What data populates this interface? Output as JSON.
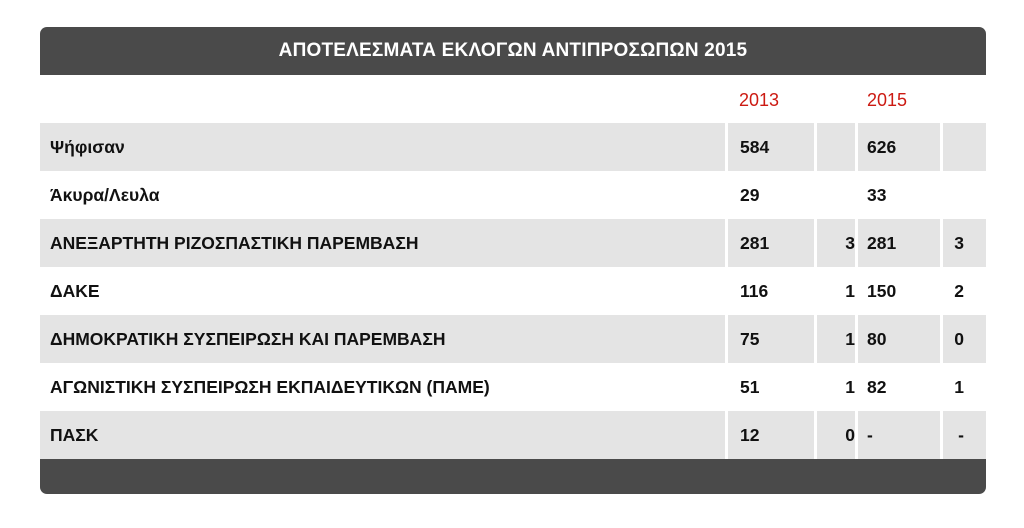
{
  "title": "ΑΠΟΤΕΛΕΣΜΑΤΑ ΕΚΛΟΓΩΝ ΑΝΤΙΠΡΟΣΩΠΩΝ 2015",
  "years": [
    "2013",
    "2015"
  ],
  "rows": [
    {
      "label": "Ψήφισαν",
      "v2013": "584",
      "s2013": "",
      "v2015": "626",
      "s2015": ""
    },
    {
      "label": "Άκυρα/Λευλα",
      "v2013": "29",
      "s2013": "",
      "v2015": "33",
      "s2015": ""
    },
    {
      "label": "ΑΝΕΞΑΡΤΗΤΗ ΡΙΖΟΣΠΑΣΤΙΚΗ ΠΑΡΕΜΒΑΣΗ",
      "v2013": "281",
      "s2013": "3",
      "v2015": "281",
      "s2015": "3"
    },
    {
      "label": "ΔΑΚΕ",
      "v2013": "116",
      "s2013": "1",
      "v2015": "150",
      "s2015": "2"
    },
    {
      "label": "ΔΗΜΟΚΡΑΤΙΚΗ ΣΥΣΠΕΙΡΩΣΗ ΚΑΙ ΠΑΡΕΜΒΑΣΗ",
      "v2013": "75",
      "s2013": "1",
      "v2015": "80",
      "s2015": "0"
    },
    {
      "label": "ΑΓΩΝΙΣΤΙΚΗ ΣΥΣΠΕΙΡΩΣΗ ΕΚΠΑΙΔΕΥΤΙΚΩΝ (ΠΑΜΕ)",
      "v2013": "51",
      "s2013": "1",
      "v2015": "82",
      "s2015": "1"
    },
    {
      "label": "ΠΑΣΚ",
      "v2013": "12",
      "s2013": "0",
      "v2015": "-",
      "s2015": "-"
    }
  ],
  "colors": {
    "header_bg": "#4a4a4a",
    "year_text": "#cc1a12",
    "row_shade": "#e4e4e4"
  }
}
